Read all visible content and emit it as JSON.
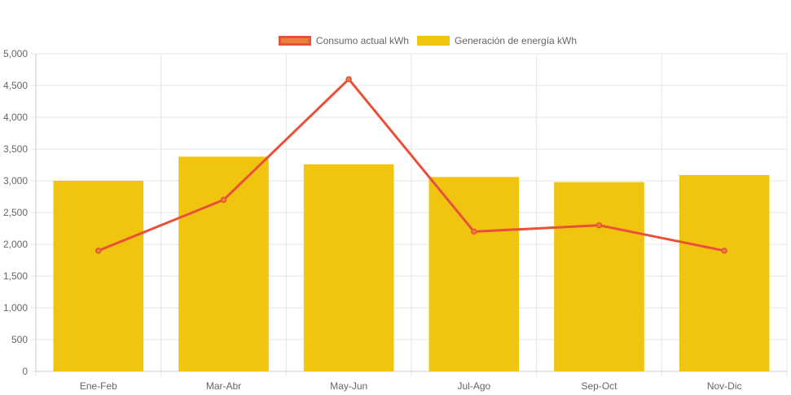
{
  "chart_data": {
    "type": "bar",
    "categories": [
      "Ene-Feb",
      "Mar-Abr",
      "May-Jun",
      "Jul-Ago",
      "Sep-Oct",
      "Nov-Dic"
    ],
    "series": [
      {
        "name": "Consumo actual kWh",
        "type": "line",
        "color": "#e8503a",
        "point_fill": "#e8833a",
        "values": [
          1900,
          2700,
          4600,
          2200,
          2300,
          1900
        ]
      },
      {
        "name": "Generación de energía kWh",
        "type": "bar",
        "color": "#f1c40f",
        "values": [
          3000,
          3380,
          3260,
          3060,
          2980,
          3090
        ]
      }
    ],
    "ylim": [
      0,
      5000
    ],
    "y_ticks": [
      0,
      500,
      1000,
      1500,
      2000,
      2500,
      3000,
      3500,
      4000,
      4500,
      5000
    ],
    "y_tick_labels": [
      "0",
      "500",
      "1,000",
      "1,500",
      "2,000",
      "2,500",
      "3,000",
      "3,500",
      "4,000",
      "4,500",
      "5,000"
    ],
    "grid": true,
    "legend_position": "top-center",
    "title": "",
    "xlabel": "",
    "ylabel": ""
  }
}
